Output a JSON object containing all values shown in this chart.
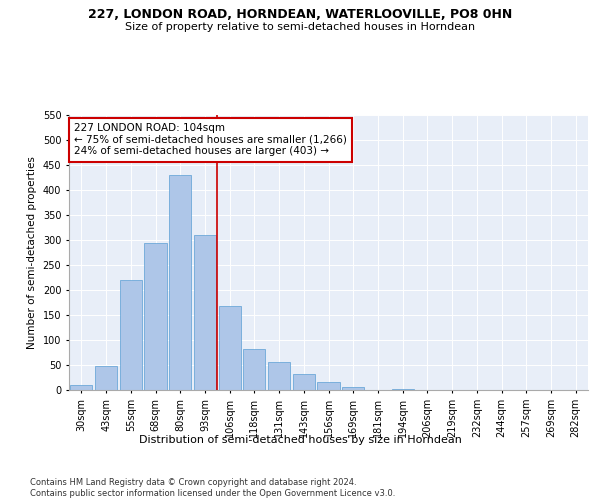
{
  "title1": "227, LONDON ROAD, HORNDEAN, WATERLOOVILLE, PO8 0HN",
  "title2": "Size of property relative to semi-detached houses in Horndean",
  "xlabel": "Distribution of semi-detached houses by size in Horndean",
  "ylabel": "Number of semi-detached properties",
  "footnote": "Contains HM Land Registry data © Crown copyright and database right 2024.\nContains public sector information licensed under the Open Government Licence v3.0.",
  "categories": [
    "30sqm",
    "43sqm",
    "55sqm",
    "68sqm",
    "80sqm",
    "93sqm",
    "106sqm",
    "118sqm",
    "131sqm",
    "143sqm",
    "156sqm",
    "169sqm",
    "181sqm",
    "194sqm",
    "206sqm",
    "219sqm",
    "232sqm",
    "244sqm",
    "257sqm",
    "269sqm",
    "282sqm"
  ],
  "values": [
    10,
    48,
    220,
    295,
    430,
    310,
    168,
    83,
    57,
    33,
    17,
    6,
    0,
    3,
    0,
    1,
    0,
    1,
    0,
    0,
    1
  ],
  "bar_color": "#aec6e8",
  "bar_edge_color": "#5a9fd4",
  "vline_color": "#cc0000",
  "annotation_text": "227 LONDON ROAD: 104sqm\n← 75% of semi-detached houses are smaller (1,266)\n24% of semi-detached houses are larger (403) →",
  "annotation_box_color": "#ffffff",
  "annotation_box_edge": "#cc0000",
  "ylim": [
    0,
    550
  ],
  "yticks": [
    0,
    50,
    100,
    150,
    200,
    250,
    300,
    350,
    400,
    450,
    500,
    550
  ],
  "bg_color": "#e8eef8",
  "title1_fontsize": 9,
  "title2_fontsize": 8,
  "xlabel_fontsize": 8,
  "ylabel_fontsize": 7.5,
  "tick_fontsize": 7,
  "annotation_fontsize": 7.5,
  "footnote_fontsize": 6
}
